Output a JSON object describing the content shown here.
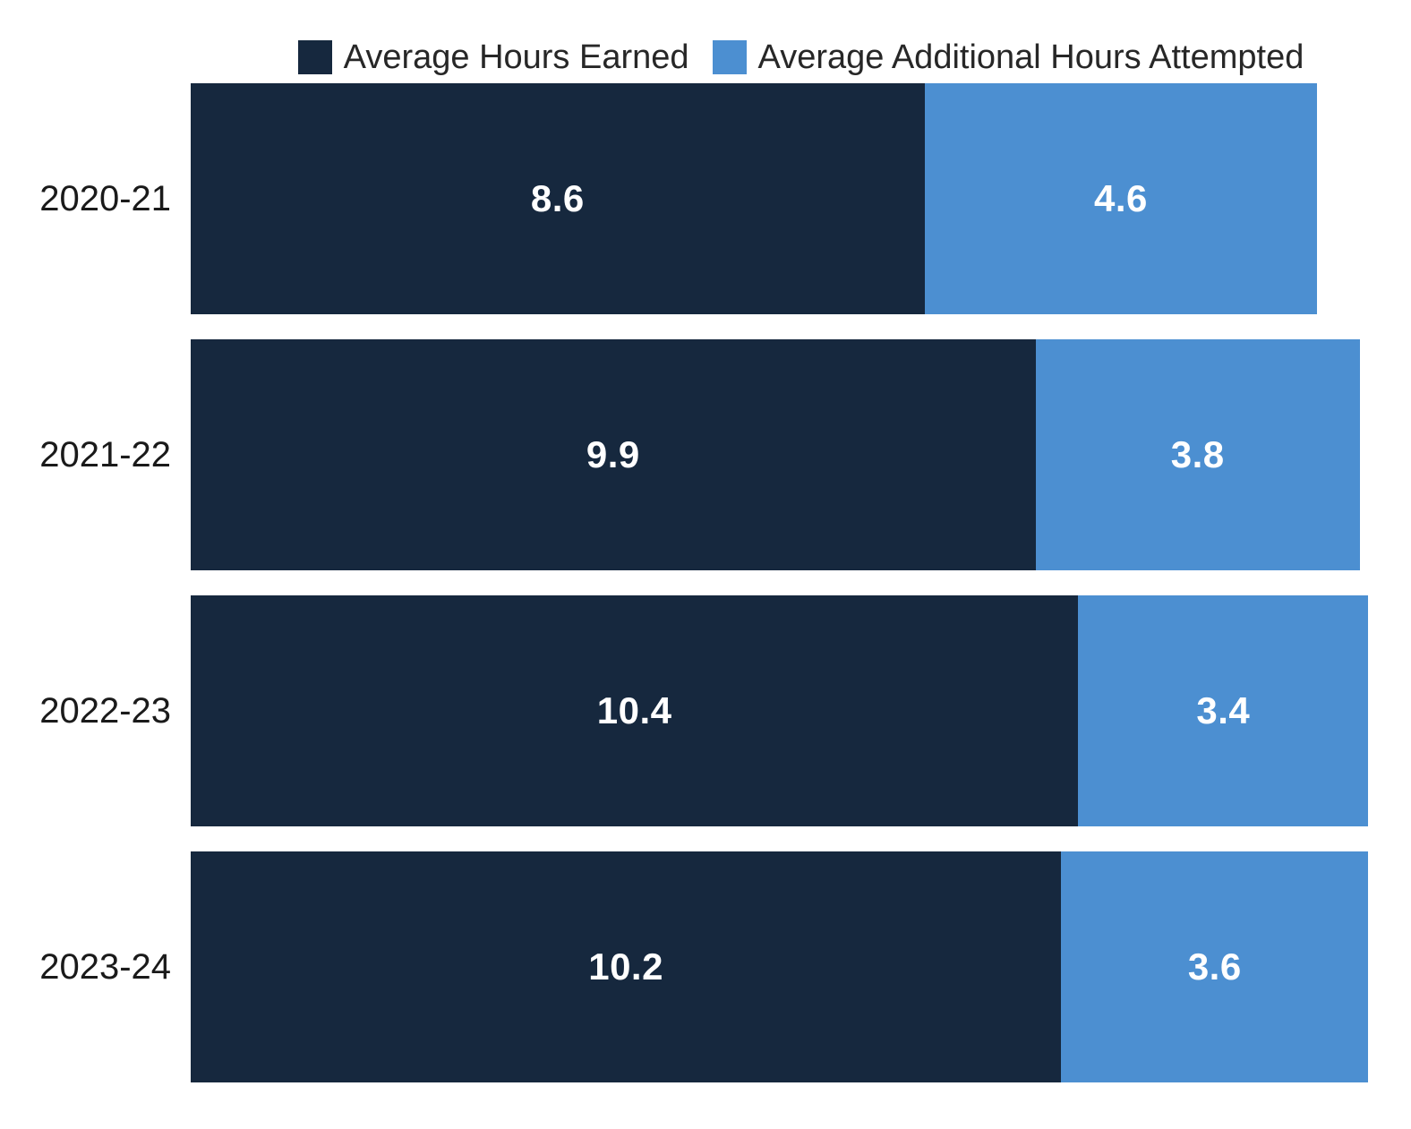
{
  "chart_data": {
    "type": "bar",
    "orientation": "horizontal",
    "stacked": true,
    "title": "",
    "xlabel": "",
    "ylabel": "",
    "categories": [
      "2020-21",
      "2021-22",
      "2022-23",
      "2023-24"
    ],
    "series": [
      {
        "name": "Average Hours Earned",
        "color": "#16283E",
        "values": [
          8.6,
          9.9,
          10.4,
          10.2
        ]
      },
      {
        "name": "Average Additional Hours Attempted",
        "color": "#4C8FD1",
        "values": [
          4.6,
          3.8,
          3.4,
          3.6
        ]
      }
    ],
    "xlim": [
      0,
      14.3
    ],
    "grid": false,
    "legend_position": "top",
    "value_labels": "inside-center",
    "value_label_color": "#ffffff",
    "background": "#ffffff",
    "category_label_color": "#1a1a1a"
  }
}
